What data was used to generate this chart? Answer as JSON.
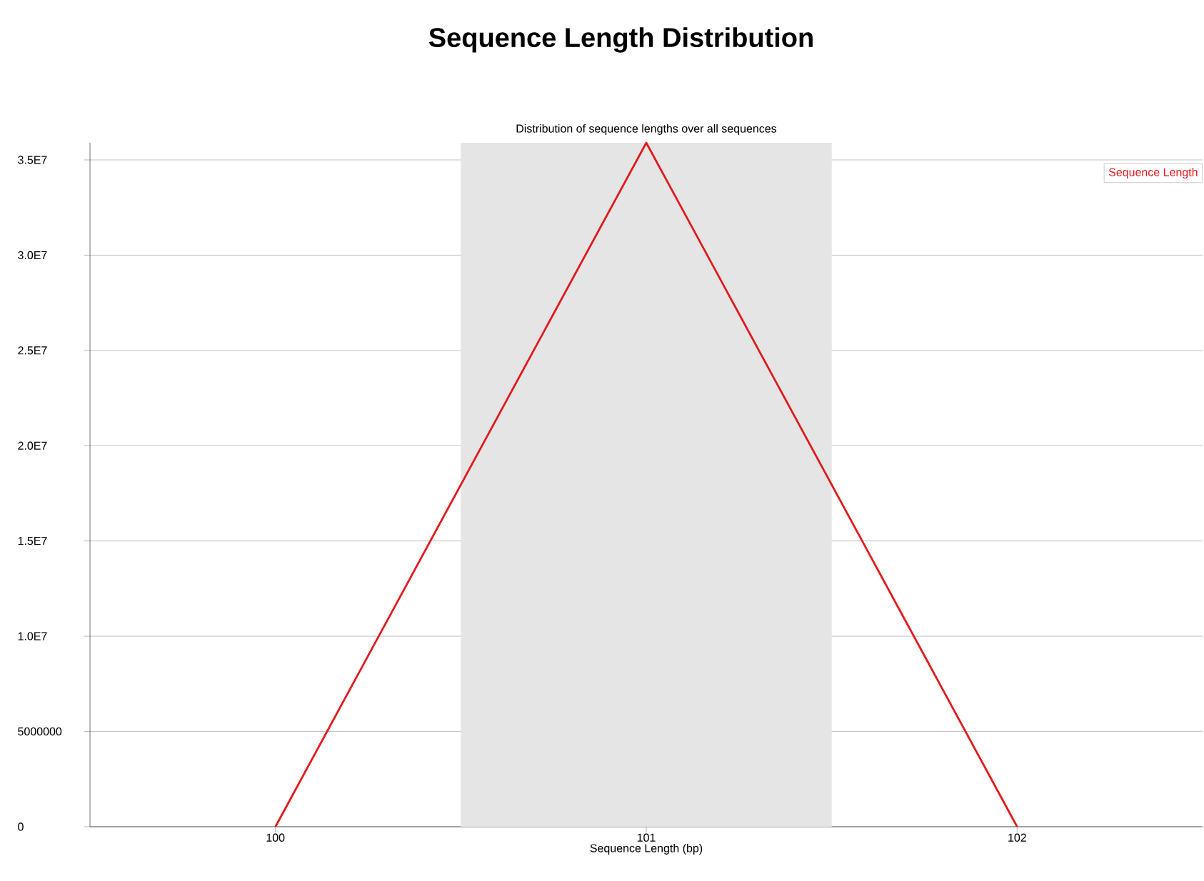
{
  "chart_data": {
    "type": "line",
    "title": "Sequence Length Distribution",
    "subtitle": "Distribution of sequence lengths over all sequences",
    "xlabel": "Sequence Length (bp)",
    "x": [
      100,
      101,
      102
    ],
    "series": [
      {
        "name": "Sequence Length",
        "color": "#e31a1c",
        "values": [
          0,
          35900000,
          0
        ]
      }
    ],
    "xlim": [
      99.5,
      102.5
    ],
    "xticks": [
      100,
      101,
      102
    ],
    "ylim": [
      0,
      35900000
    ],
    "yticks": [
      0,
      5000000,
      {
        "value": 10000000,
        "label": "1.0E7"
      },
      {
        "value": 15000000,
        "label": "1.5E7"
      },
      {
        "value": 20000000,
        "label": "2.0E7"
      },
      {
        "value": 25000000,
        "label": "2.5E7"
      },
      {
        "value": 30000000,
        "label": "3.0E7"
      },
      {
        "value": 35000000,
        "label": "3.5E7"
      }
    ],
    "bands": [
      {
        "axis": "x",
        "from": 100.5,
        "to": 101.5,
        "color": "#e5e5e5"
      }
    ],
    "grid": "y",
    "legend": "top right",
    "marker": "none",
    "line_style": "solid"
  }
}
